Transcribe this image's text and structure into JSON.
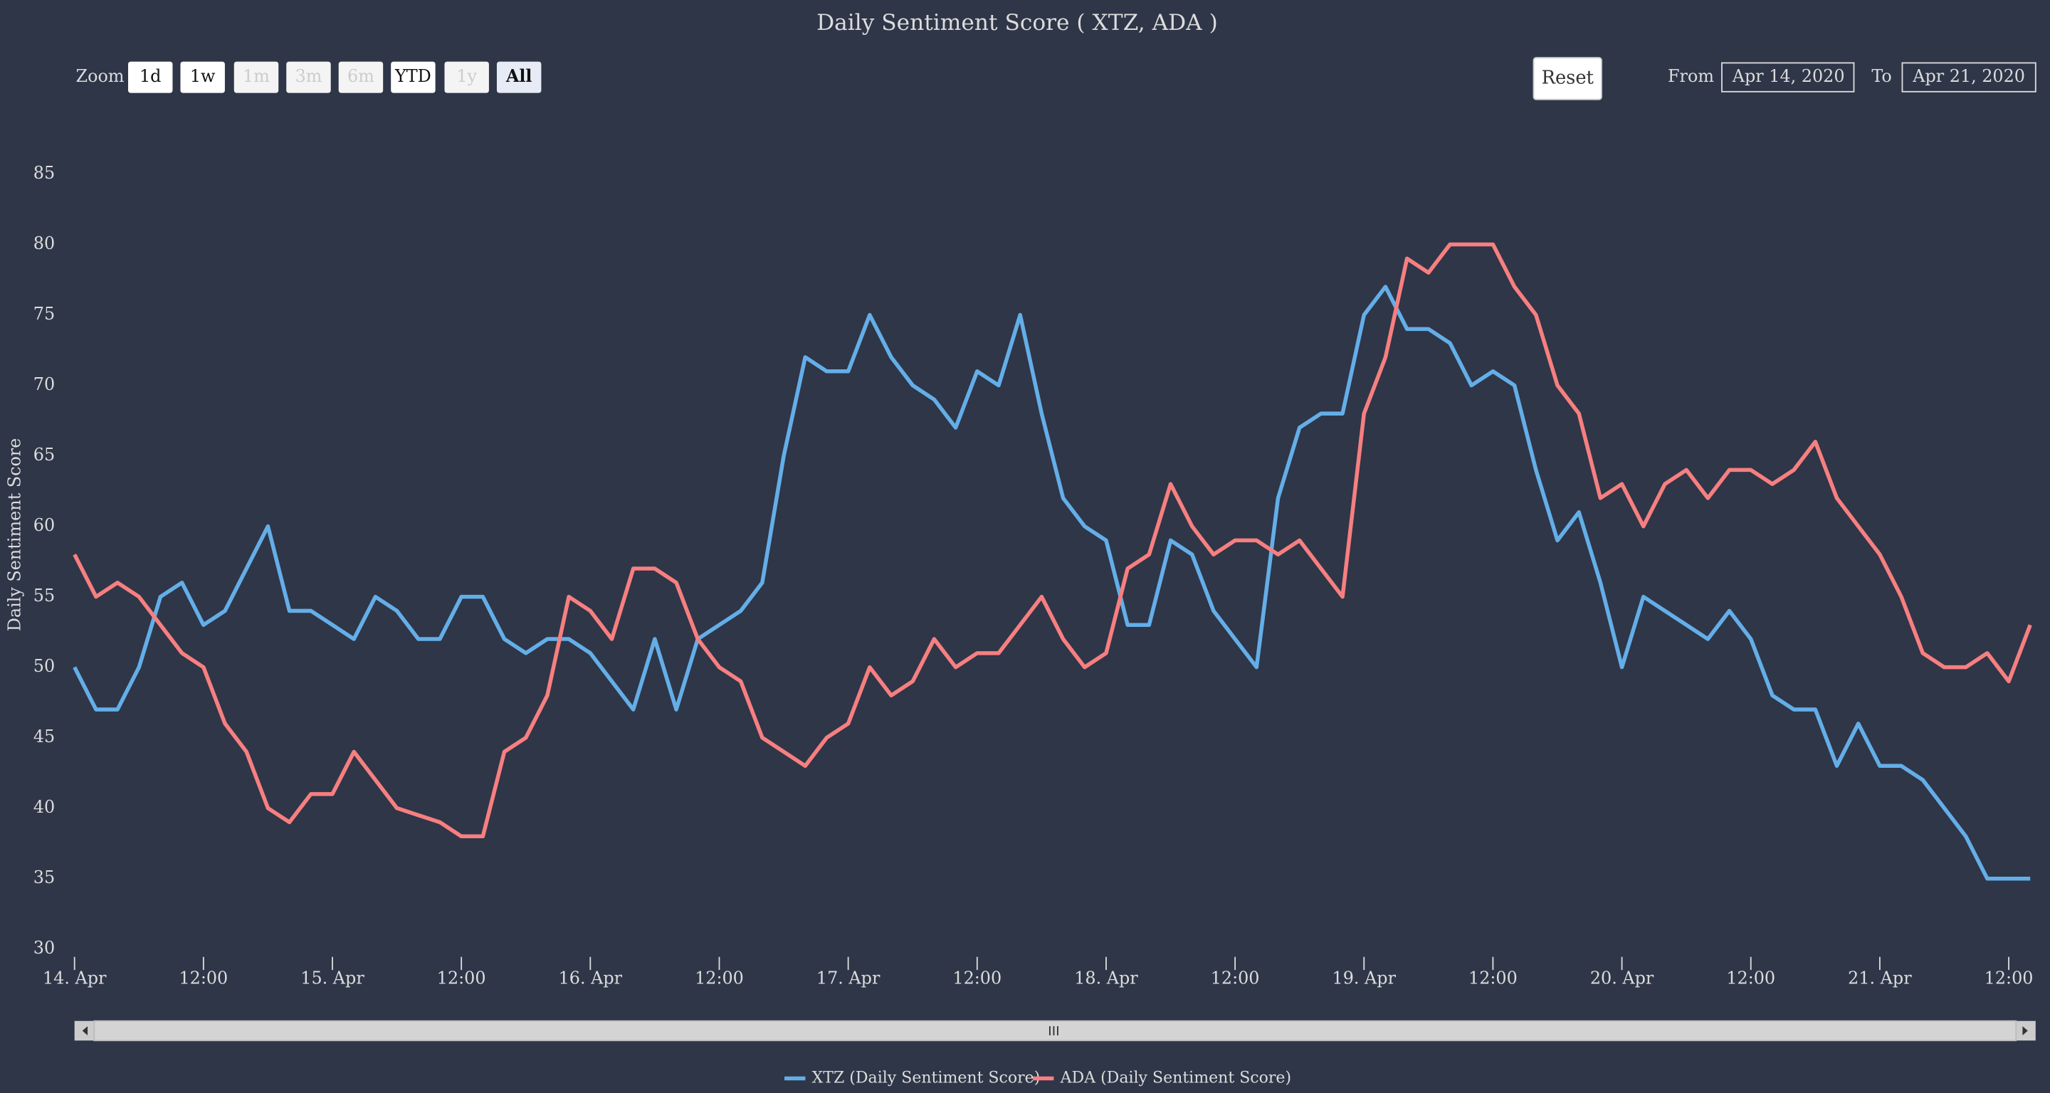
{
  "chart_data": {
    "type": "line",
    "title": "Daily Sentiment Score ( XTZ, ADA )",
    "y_label": "Daily Sentiment Score",
    "range_selector": {
      "label": "Zoom",
      "buttons": [
        "1d",
        "1w",
        "1m",
        "3m",
        "6m",
        "YTD",
        "1y",
        "All"
      ],
      "reset": "Reset",
      "from_label": "From",
      "from": "Apr 14, 2020",
      "to_label": "To",
      "to": "Apr 21, 2020"
    },
    "x": [
      "2020-04-14T00:00",
      "2020-04-14T02:00",
      "2020-04-14T04:00",
      "2020-04-14T06:00",
      "2020-04-14T08:00",
      "2020-04-14T10:00",
      "2020-04-14T12:00",
      "2020-04-14T14:00",
      "2020-04-14T16:00",
      "2020-04-14T18:00",
      "2020-04-14T20:00",
      "2020-04-14T22:00",
      "2020-04-15T00:00",
      "2020-04-15T02:00",
      "2020-04-15T04:00",
      "2020-04-15T06:00",
      "2020-04-15T08:00",
      "2020-04-15T10:00",
      "2020-04-15T12:00",
      "2020-04-15T14:00",
      "2020-04-15T16:00",
      "2020-04-15T18:00",
      "2020-04-15T20:00",
      "2020-04-15T22:00",
      "2020-04-16T00:00",
      "2020-04-16T02:00",
      "2020-04-16T04:00",
      "2020-04-16T06:00",
      "2020-04-16T08:00",
      "2020-04-16T10:00",
      "2020-04-16T12:00",
      "2020-04-16T14:00",
      "2020-04-16T16:00",
      "2020-04-16T18:00",
      "2020-04-16T20:00",
      "2020-04-16T22:00",
      "2020-04-17T00:00",
      "2020-04-17T02:00",
      "2020-04-17T04:00",
      "2020-04-17T06:00",
      "2020-04-17T08:00",
      "2020-04-17T10:00",
      "2020-04-17T12:00",
      "2020-04-17T14:00",
      "2020-04-17T16:00",
      "2020-04-17T18:00",
      "2020-04-17T20:00",
      "2020-04-17T22:00",
      "2020-04-18T00:00",
      "2020-04-18T02:00",
      "2020-04-18T04:00",
      "2020-04-18T06:00",
      "2020-04-18T08:00",
      "2020-04-18T10:00",
      "2020-04-18T12:00",
      "2020-04-18T14:00",
      "2020-04-18T16:00",
      "2020-04-18T18:00",
      "2020-04-18T20:00",
      "2020-04-18T22:00",
      "2020-04-19T00:00",
      "2020-04-19T02:00",
      "2020-04-19T04:00",
      "2020-04-19T06:00",
      "2020-04-19T08:00",
      "2020-04-19T10:00",
      "2020-04-19T12:00",
      "2020-04-19T14:00",
      "2020-04-19T16:00",
      "2020-04-19T18:00",
      "2020-04-19T20:00",
      "2020-04-19T22:00",
      "2020-04-20T00:00",
      "2020-04-20T02:00",
      "2020-04-20T04:00",
      "2020-04-20T06:00",
      "2020-04-20T08:00",
      "2020-04-20T10:00",
      "2020-04-20T12:00",
      "2020-04-20T14:00",
      "2020-04-20T16:00",
      "2020-04-20T18:00",
      "2020-04-20T20:00",
      "2020-04-20T22:00",
      "2020-04-21T00:00",
      "2020-04-21T02:00",
      "2020-04-21T04:00",
      "2020-04-21T06:00",
      "2020-04-21T08:00",
      "2020-04-21T10:00",
      "2020-04-21T12:00",
      "2020-04-21T14:00"
    ],
    "series": [
      {
        "name": "XTZ (Daily Sentiment Score)",
        "color": "#64aee8",
        "values": [
          50,
          47,
          47,
          50,
          55,
          56,
          53,
          54,
          57,
          60,
          54,
          54,
          53,
          52,
          55,
          54,
          52,
          52,
          55,
          55,
          52,
          51,
          52,
          52,
          51,
          49,
          47,
          52,
          47,
          52,
          53,
          54,
          56,
          65,
          72,
          71,
          71,
          75,
          72,
          70,
          69,
          67,
          71,
          70,
          75,
          68,
          62,
          60,
          59,
          53,
          53,
          59,
          58,
          54,
          52,
          50,
          62,
          67,
          68,
          68,
          75,
          77,
          74,
          74,
          73,
          70,
          71,
          70,
          64,
          59,
          61,
          56,
          50,
          55,
          54,
          53,
          52,
          54,
          52,
          48,
          47,
          47,
          43,
          46,
          43,
          43,
          42,
          40,
          38,
          35,
          35,
          35
        ]
      },
      {
        "name": "ADA (Daily Sentiment Score)",
        "color": "#f77f80",
        "values": [
          58,
          55,
          56,
          55,
          53,
          51,
          50,
          46,
          44,
          40,
          39,
          41,
          41,
          44,
          42,
          40,
          39.5,
          39,
          38,
          38,
          44,
          45,
          48,
          55,
          54,
          52,
          57,
          57,
          56,
          52,
          50,
          49,
          45,
          44,
          43,
          45,
          46,
          50,
          48,
          49,
          52,
          50,
          51,
          51,
          53,
          55,
          52,
          50,
          51,
          57,
          58,
          63,
          60,
          58,
          59,
          59,
          58,
          59,
          57,
          55,
          68,
          72,
          79,
          78,
          80,
          80,
          80,
          77,
          75,
          70,
          68,
          62,
          63,
          60,
          63,
          64,
          62,
          64,
          64,
          63,
          64,
          66,
          62,
          60,
          58,
          55,
          51,
          50,
          50,
          51,
          49,
          53
        ]
      }
    ],
    "xlim": [
      "2020-04-14T00:00",
      "2020-04-21T14:30"
    ],
    "xticks": [
      {
        "value": "2020-04-14T00:00",
        "label": "14. Apr"
      },
      {
        "value": "2020-04-14T12:00",
        "label": "12:00"
      },
      {
        "value": "2020-04-15T00:00",
        "label": "15. Apr"
      },
      {
        "value": "2020-04-15T12:00",
        "label": "12:00"
      },
      {
        "value": "2020-04-16T00:00",
        "label": "16. Apr"
      },
      {
        "value": "2020-04-16T12:00",
        "label": "12:00"
      },
      {
        "value": "2020-04-17T00:00",
        "label": "17. Apr"
      },
      {
        "value": "2020-04-17T12:00",
        "label": "12:00"
      },
      {
        "value": "2020-04-18T00:00",
        "label": "18. Apr"
      },
      {
        "value": "2020-04-18T12:00",
        "label": "12:00"
      },
      {
        "value": "2020-04-19T00:00",
        "label": "19. Apr"
      },
      {
        "value": "2020-04-19T12:00",
        "label": "12:00"
      },
      {
        "value": "2020-04-20T00:00",
        "label": "20. Apr"
      },
      {
        "value": "2020-04-20T12:00",
        "label": "12:00"
      },
      {
        "value": "2020-04-21T00:00",
        "label": "21. Apr"
      },
      {
        "value": "2020-04-21T12:00",
        "label": "12:00"
      }
    ],
    "ylim": [
      30,
      85
    ],
    "yticks": [
      30,
      35,
      40,
      45,
      50,
      55,
      60,
      65,
      70,
      75,
      80,
      85
    ],
    "grid": false,
    "legend": "bottom"
  }
}
